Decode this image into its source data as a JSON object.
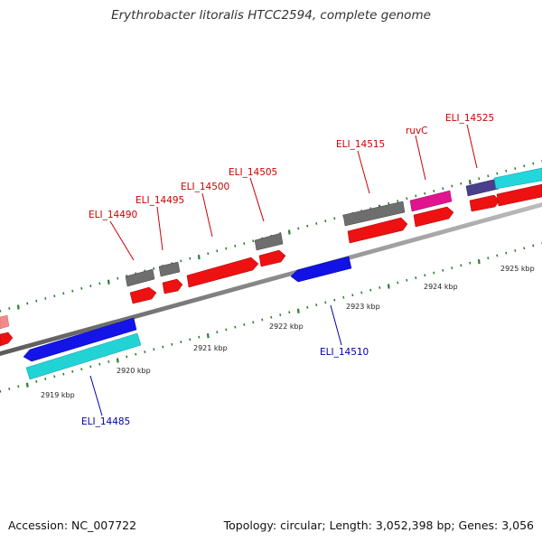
{
  "title": "Erythrobacter litoralis HTCC2594, complete genome",
  "footer": {
    "accession": "Accession: NC_007722",
    "stats": "Topology: circular; Length: 3,052,398 bp; Genes: 3,056"
  },
  "colors": {
    "label_forward": "#cc0000",
    "label_reverse": "#0000aa",
    "backbone": "#8a8a8a",
    "tick": "#2e7d32"
  },
  "gene_labels": [
    {
      "text": "ELI_14490",
      "strand": "forward"
    },
    {
      "text": "ELI_14495",
      "strand": "forward"
    },
    {
      "text": "ELI_14500",
      "strand": "forward"
    },
    {
      "text": "ELI_14505",
      "strand": "forward"
    },
    {
      "text": "ELI_14515",
      "strand": "forward"
    },
    {
      "text": "ruvC",
      "strand": "forward"
    },
    {
      "text": "ELI_14525",
      "strand": "forward"
    },
    {
      "text": "ELI_14510",
      "strand": "reverse"
    },
    {
      "text": "ELI_14485",
      "strand": "reverse"
    }
  ],
  "scale_labels": [
    "2919 kbp",
    "2920 kbp",
    "2921 kbp",
    "2922 kbp",
    "2923 kbp",
    "2924 kbp",
    "2925 kbp"
  ]
}
